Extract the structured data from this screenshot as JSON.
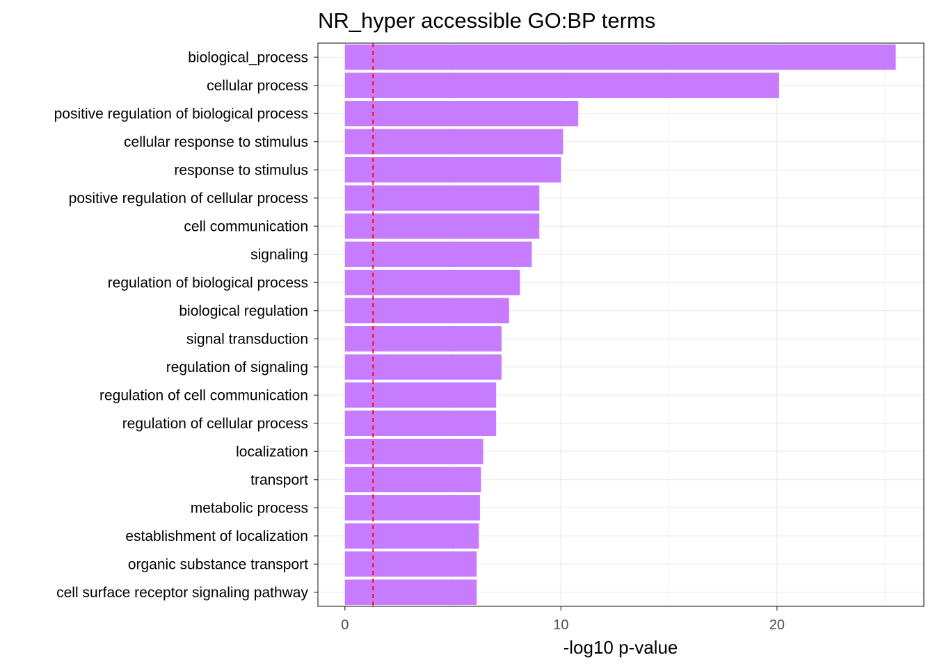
{
  "chart_data": {
    "type": "bar",
    "orientation": "horizontal",
    "title": "NR_hyper accessible GO:BP terms",
    "xlabel": "-log10 p-value",
    "ylabel": "",
    "xlim": [
      -1.25,
      26.8
    ],
    "xticks": [
      0,
      10,
      20
    ],
    "xtick_labels": [
      "0",
      "10",
      "20"
    ],
    "grid": true,
    "threshold": 1.3,
    "bar_color": "#C77CFF",
    "threshold_color": "#FF0000",
    "categories": [
      "biological_process",
      "cellular process",
      "positive regulation of biological process",
      "cellular response to stimulus",
      "response to stimulus",
      "positive regulation of cellular process",
      "cell communication",
      "signaling",
      "regulation of biological process",
      "biological regulation",
      "signal transduction",
      "regulation of signaling",
      "regulation of cell communication",
      "regulation of cellular process",
      "localization",
      "transport",
      "metabolic process",
      "establishment of localization",
      "organic substance transport",
      "cell surface receptor signaling pathway"
    ],
    "values": [
      25.5,
      20.1,
      10.8,
      10.1,
      10.0,
      9.0,
      9.0,
      8.65,
      8.1,
      7.6,
      7.25,
      7.25,
      7.0,
      7.0,
      6.4,
      6.3,
      6.25,
      6.2,
      6.1,
      6.1
    ]
  }
}
